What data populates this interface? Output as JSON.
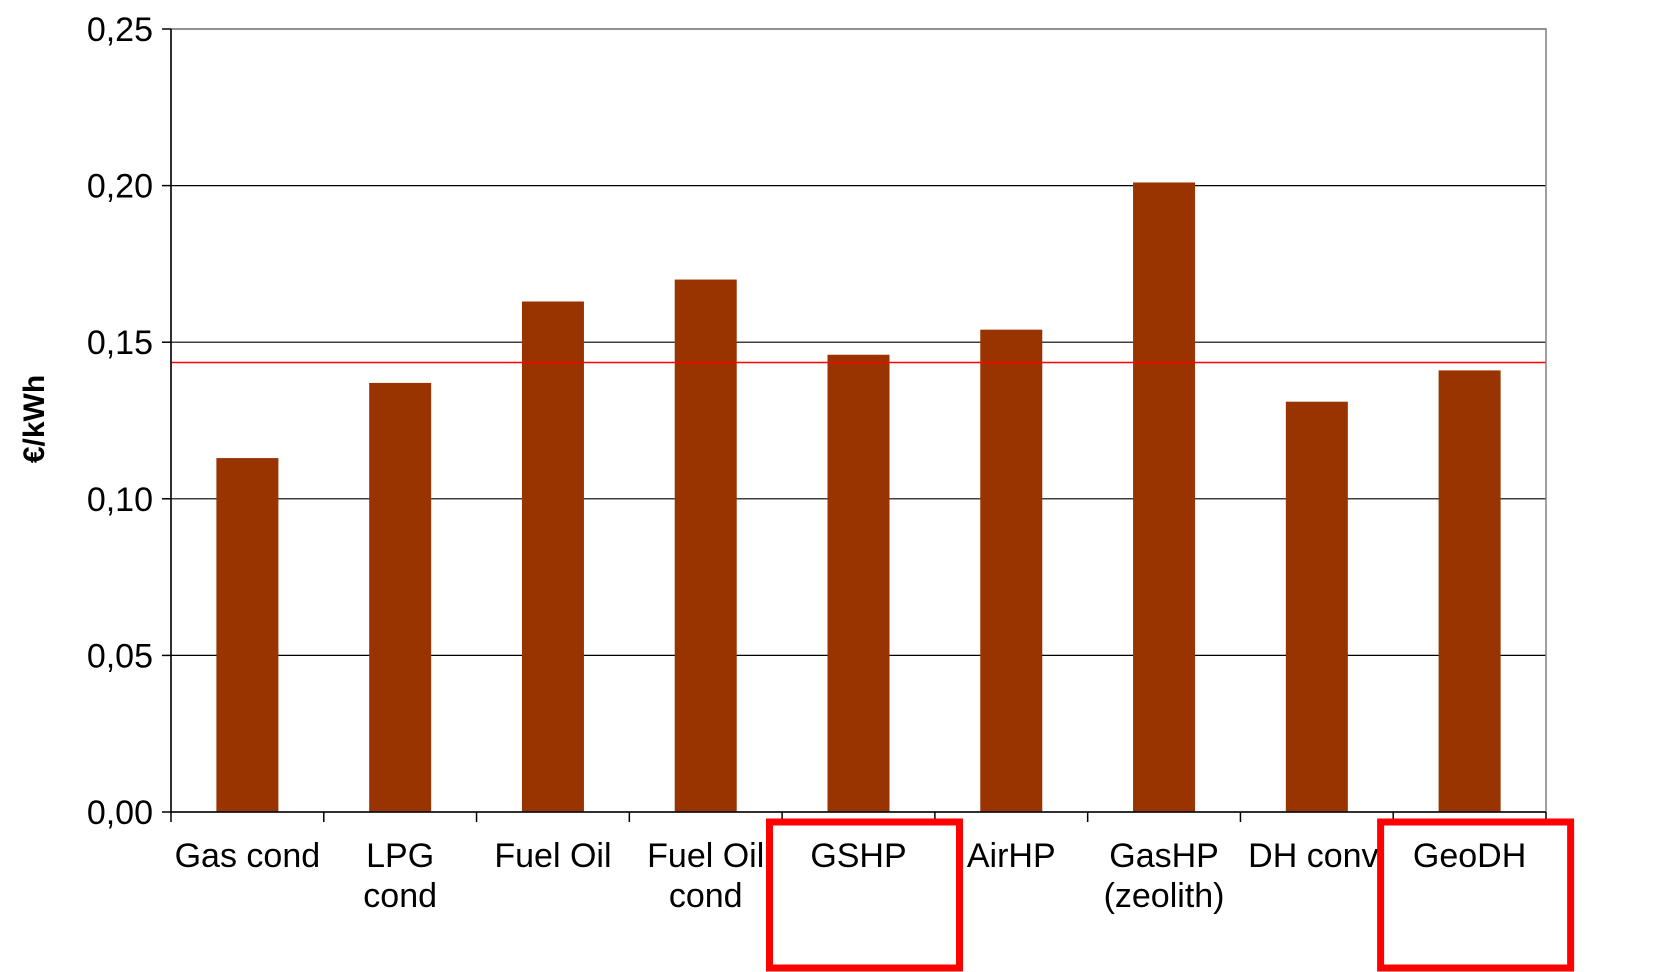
{
  "chart_data": {
    "type": "bar",
    "title": "",
    "xlabel": "",
    "ylabel": "€/kWh",
    "ylim": [
      0,
      0.25
    ],
    "yticks": [
      0,
      0.05,
      0.1,
      0.15,
      0.2,
      0.25
    ],
    "ytick_labels": [
      "0,00",
      "0,05",
      "0,10",
      "0,15",
      "0,20",
      "0,25"
    ],
    "categories": [
      [
        "Gas cond"
      ],
      [
        "LPG",
        "cond"
      ],
      [
        "Fuel Oil"
      ],
      [
        "Fuel Oil",
        "cond"
      ],
      [
        "GSHP"
      ],
      [
        "AirHP"
      ],
      [
        "GasHP",
        "(zeolith)"
      ],
      [
        "DH conv."
      ],
      [
        "GeoDH"
      ]
    ],
    "values": [
      0.113,
      0.137,
      0.163,
      0.17,
      0.146,
      0.154,
      0.201,
      0.131,
      0.141
    ],
    "reference_line": 0.1435,
    "highlighted_categories": [
      "GSHP",
      "GeoDH"
    ],
    "grid": true,
    "legend": "none",
    "colors": {
      "bar": "#993300",
      "reference_line": "#ff0000",
      "highlight_box": "#ff0000",
      "gridline": "#000000"
    }
  }
}
